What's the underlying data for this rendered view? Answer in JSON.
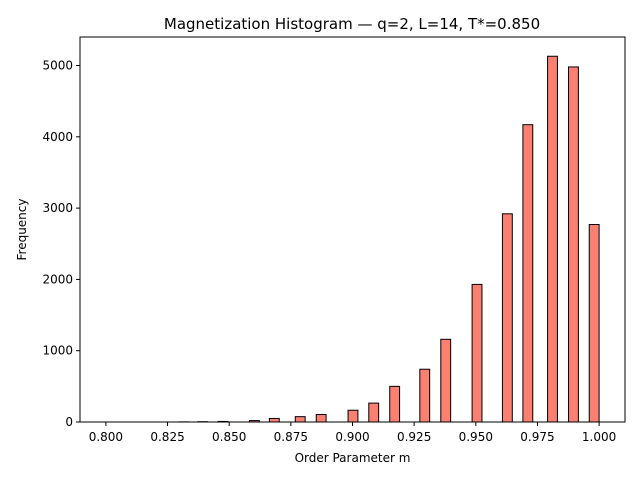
{
  "chart_data": {
    "type": "bar",
    "title": "Magnetization Histogram — q=2, L=14, T*=0.850",
    "xlabel": "Order Parameter m",
    "ylabel": "Frequency",
    "xlim": [
      0.7895,
      1.0105
    ],
    "ylim": [
      0,
      5400
    ],
    "xticks": [
      0.8,
      0.825,
      0.85,
      0.875,
      0.9,
      0.925,
      0.95,
      0.975,
      1.0
    ],
    "xtick_labels": [
      "0.800",
      "0.825",
      "0.850",
      "0.875",
      "0.900",
      "0.925",
      "0.950",
      "0.975",
      "1.000"
    ],
    "yticks": [
      0,
      1000,
      2000,
      3000,
      4000,
      5000
    ],
    "ytick_labels": [
      "0",
      "1000",
      "2000",
      "3000",
      "4000",
      "5000"
    ],
    "bar_width": 0.004,
    "bar_color": "#fa8072",
    "edge_color": "#000000",
    "grid": false,
    "x": [
      0.7975,
      0.8059,
      0.8147,
      0.8237,
      0.8316,
      0.8392,
      0.8475,
      0.8602,
      0.8683,
      0.8788,
      0.8873,
      0.9002,
      0.9086,
      0.9171,
      0.9293,
      0.9378,
      0.9505,
      0.9628,
      0.9711,
      0.9811,
      0.9896,
      0.998
    ],
    "values": [
      0,
      0,
      0,
      0,
      2,
      4,
      8,
      20,
      50,
      75,
      105,
      165,
      265,
      500,
      740,
      1160,
      1930,
      2920,
      4170,
      5130,
      4980,
      2770
    ]
  }
}
